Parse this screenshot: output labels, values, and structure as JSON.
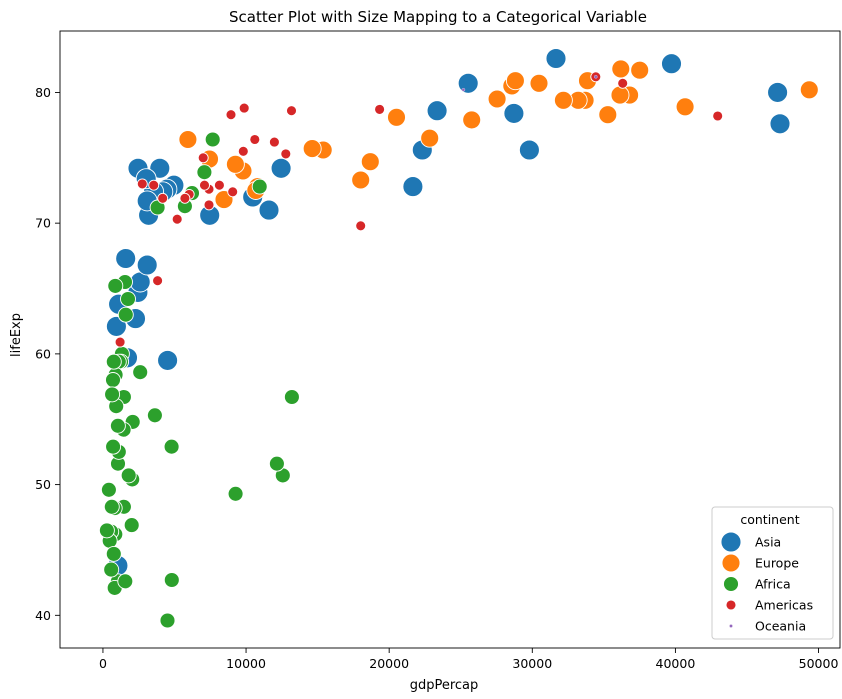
{
  "chart_data": {
    "type": "scatter",
    "title": "Scatter Plot with Size Mapping to a Categorical Variable",
    "xlabel": "gdpPercap",
    "ylabel": "lifeExp",
    "xlim": [
      -3000,
      51500
    ],
    "ylim": [
      37.5,
      84.7
    ],
    "xticks": [
      0,
      10000,
      20000,
      30000,
      40000,
      50000
    ],
    "xtick_labels": [
      "0",
      "10000",
      "20000",
      "30000",
      "40000",
      "50000"
    ],
    "yticks": [
      40,
      50,
      60,
      70,
      80
    ],
    "ytick_labels": [
      "40",
      "50",
      "60",
      "70",
      "80"
    ],
    "grid": false,
    "legend": {
      "title": "continent",
      "placement": "lower-right"
    },
    "series": [
      {
        "name": "Asia",
        "color": "#1f77b4",
        "size_rank": 1,
        "points": [
          [
            31656,
            82.6
          ],
          [
            39725,
            82.2
          ],
          [
            47143,
            80.0
          ],
          [
            47307,
            77.6
          ],
          [
            25523,
            80.7
          ],
          [
            28718,
            78.4
          ],
          [
            23348,
            78.6
          ],
          [
            29796,
            75.6
          ],
          [
            22316,
            75.6
          ],
          [
            21655,
            72.8
          ],
          [
            12452,
            74.2
          ],
          [
            11606,
            71.0
          ],
          [
            10461,
            72.0
          ],
          [
            7458,
            70.6
          ],
          [
            4959,
            72.9
          ],
          [
            4471,
            72.6
          ],
          [
            4185,
            72.4
          ],
          [
            3970,
            74.2
          ],
          [
            3541,
            72.4
          ],
          [
            3190,
            70.6
          ],
          [
            3095,
            71.7
          ],
          [
            2452,
            74.2
          ],
          [
            3025,
            73.4
          ],
          [
            4519,
            59.5
          ],
          [
            2442,
            64.7
          ],
          [
            2605,
            65.5
          ],
          [
            3096,
            66.8
          ],
          [
            1592,
            67.3
          ],
          [
            1713,
            59.7
          ],
          [
            2276,
            62.7
          ],
          [
            944,
            62.1
          ],
          [
            1092,
            63.8
          ],
          [
            1045,
            43.8
          ]
        ]
      },
      {
        "name": "Europe",
        "color": "#ff7f0e",
        "size_rank": 2,
        "points": [
          [
            49357,
            80.2
          ],
          [
            40676,
            78.9
          ],
          [
            37506,
            81.7
          ],
          [
            36797,
            79.8
          ],
          [
            36181,
            81.8
          ],
          [
            36126,
            79.8
          ],
          [
            35278,
            78.3
          ],
          [
            33860,
            80.9
          ],
          [
            33693,
            79.4
          ],
          [
            33207,
            79.4
          ],
          [
            32170,
            79.4
          ],
          [
            30470,
            80.7
          ],
          [
            28570,
            80.5
          ],
          [
            28821,
            80.9
          ],
          [
            27538,
            79.5
          ],
          [
            25768,
            77.9
          ],
          [
            22833,
            76.5
          ],
          [
            20510,
            78.1
          ],
          [
            18678,
            74.7
          ],
          [
            18009,
            73.3
          ],
          [
            15390,
            75.6
          ],
          [
            14619,
            75.7
          ],
          [
            10808,
            72.8
          ],
          [
            10681,
            72.5
          ],
          [
            9787,
            74.0
          ],
          [
            9254,
            74.5
          ],
          [
            8458,
            71.8
          ],
          [
            7446,
            74.9
          ],
          [
            5937,
            76.4
          ]
        ]
      },
      {
        "name": "Africa",
        "color": "#2ca02c",
        "size_rank": 3,
        "points": [
          [
            7670,
            76.4
          ],
          [
            7092,
            73.9
          ],
          [
            6223,
            72.3
          ],
          [
            5728,
            71.3
          ],
          [
            3820,
            71.2
          ],
          [
            10956,
            72.8
          ],
          [
            13206,
            56.7
          ],
          [
            12570,
            50.7
          ],
          [
            12154,
            51.6
          ],
          [
            9270,
            49.3
          ],
          [
            4797,
            52.9
          ],
          [
            4811,
            42.7
          ],
          [
            4513,
            39.6
          ],
          [
            3632,
            55.3
          ],
          [
            2602,
            58.6
          ],
          [
            2082,
            54.8
          ],
          [
            2042,
            50.4
          ],
          [
            1803,
            50.7
          ],
          [
            2013,
            46.9
          ],
          [
            1753,
            64.2
          ],
          [
            1545,
            65.5
          ],
          [
            1463,
            56.7
          ],
          [
            1441,
            54.2
          ],
          [
            1327,
            60.0
          ],
          [
            1271,
            59.4
          ],
          [
            1107,
            59.4
          ],
          [
            1056,
            51.6
          ],
          [
            1107,
            52.5
          ],
          [
            1044,
            54.5
          ],
          [
            926,
            56.0
          ],
          [
            883,
            58.4
          ],
          [
            759,
            59.4
          ],
          [
            706,
            58.0
          ],
          [
            641,
            56.9
          ],
          [
            863,
            65.2
          ],
          [
            1600,
            63.0
          ],
          [
            1467,
            48.3
          ],
          [
            1043,
            42.6
          ],
          [
            824,
            48.2
          ],
          [
            863,
            46.2
          ],
          [
            712,
            52.9
          ],
          [
            620,
            48.3
          ],
          [
            579,
            46.4
          ],
          [
            470,
            45.7
          ],
          [
            415,
            49.6
          ],
          [
            277,
            46.5
          ],
          [
            759,
            44.7
          ],
          [
            579,
            43.5
          ],
          [
            823,
            42.1
          ],
          [
            1563,
            42.6
          ]
        ]
      },
      {
        "name": "Americas",
        "color": "#d62728",
        "size_rank": 4,
        "points": [
          [
            42952,
            78.2
          ],
          [
            36319,
            80.7
          ],
          [
            34435,
            81.2
          ],
          [
            19329,
            78.7
          ],
          [
            13172,
            78.6
          ],
          [
            12779,
            75.3
          ],
          [
            11978,
            76.2
          ],
          [
            10611,
            76.4
          ],
          [
            9809,
            75.5
          ],
          [
            9066,
            72.4
          ],
          [
            8948,
            78.3
          ],
          [
            8139,
            72.9
          ],
          [
            7409,
            72.6
          ],
          [
            7009,
            75.0
          ],
          [
            7093,
            72.9
          ],
          [
            7408,
            71.4
          ],
          [
            6025,
            72.2
          ],
          [
            5728,
            71.9
          ],
          [
            5186,
            70.3
          ],
          [
            4173,
            71.9
          ],
          [
            3822,
            65.6
          ],
          [
            3548,
            72.9
          ],
          [
            2749,
            73.0
          ],
          [
            1202,
            60.9
          ],
          [
            18009,
            69.8
          ],
          [
            9873,
            78.8
          ]
        ]
      },
      {
        "name": "Oceania",
        "color": "#9467bd",
        "size_rank": 5,
        "points": [
          [
            34435,
            81.2
          ],
          [
            25185,
            80.2
          ]
        ]
      }
    ]
  }
}
